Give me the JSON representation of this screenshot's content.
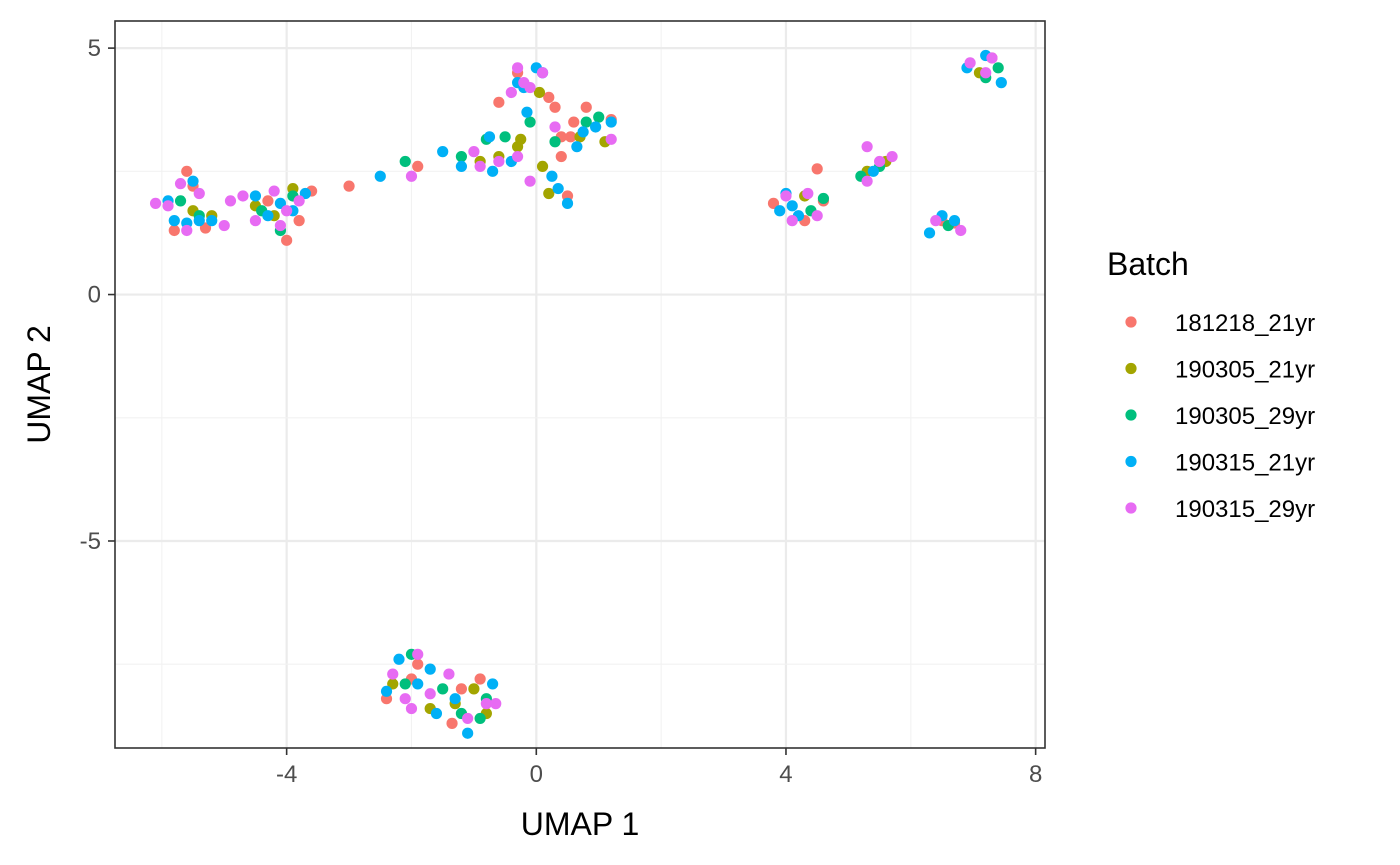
{
  "chart_data": {
    "type": "scatter",
    "title": "",
    "xlabel": "UMAP 1",
    "ylabel": "UMAP 2",
    "xlim": [
      -6.75,
      8.15
    ],
    "ylim": [
      -9.2,
      5.55
    ],
    "xticks": [
      -4,
      0,
      4,
      8
    ],
    "yticks": [
      5,
      0,
      -5
    ],
    "xtick_labels": [
      "-4",
      "0",
      "4",
      "8"
    ],
    "ytick_labels": [
      "5",
      "0",
      "-5"
    ],
    "grid": true,
    "legend": {
      "title": "Batch",
      "position": "right"
    },
    "series": [
      {
        "name": "181218_21yr",
        "color": "#F8766D",
        "points": [
          [
            -5.6,
            2.5
          ],
          [
            -5.8,
            1.3
          ],
          [
            -5.3,
            1.35
          ],
          [
            -5.5,
            2.2
          ],
          [
            -4.0,
            1.1
          ],
          [
            -3.6,
            2.1
          ],
          [
            -3.0,
            2.2
          ],
          [
            -1.9,
            2.6
          ],
          [
            -3.8,
            1.5
          ],
          [
            -4.3,
            1.9
          ],
          [
            -0.3,
            4.5
          ],
          [
            -0.6,
            3.9
          ],
          [
            0.2,
            4.0
          ],
          [
            0.3,
            3.8
          ],
          [
            0.8,
            3.8
          ],
          [
            0.6,
            3.5
          ],
          [
            1.2,
            3.55
          ],
          [
            0.4,
            3.2
          ],
          [
            0.55,
            3.2
          ],
          [
            0.4,
            2.8
          ],
          [
            0.5,
            2.0
          ],
          [
            3.8,
            1.85
          ],
          [
            4.3,
            1.5
          ],
          [
            4.5,
            2.55
          ],
          [
            4.6,
            1.9
          ],
          [
            6.5,
            1.5
          ],
          [
            6.7,
            1.45
          ],
          [
            -1.35,
            -8.7
          ],
          [
            -0.9,
            -7.8
          ],
          [
            -2.0,
            -7.8
          ],
          [
            -1.9,
            -7.5
          ],
          [
            -2.4,
            -8.2
          ],
          [
            -1.2,
            -8.0
          ],
          [
            7.3,
            4.8
          ]
        ]
      },
      {
        "name": "190305_21yr",
        "color": "#A3A500",
        "points": [
          [
            -5.5,
            1.7
          ],
          [
            -4.5,
            1.8
          ],
          [
            -3.9,
            2.15
          ],
          [
            -5.2,
            1.6
          ],
          [
            -0.6,
            2.8
          ],
          [
            -0.3,
            3.0
          ],
          [
            -0.25,
            3.15
          ],
          [
            0.05,
            4.1
          ],
          [
            0.1,
            2.6
          ],
          [
            0.2,
            2.05
          ],
          [
            1.1,
            3.1
          ],
          [
            0.7,
            3.2
          ],
          [
            -0.9,
            2.7
          ],
          [
            5.3,
            2.5
          ],
          [
            5.6,
            2.7
          ],
          [
            4.3,
            2.0
          ],
          [
            -1.7,
            -8.4
          ],
          [
            -1.0,
            -8.0
          ],
          [
            -2.3,
            -7.9
          ],
          [
            -1.3,
            -8.3
          ],
          [
            -0.8,
            -8.5
          ],
          [
            7.1,
            4.5
          ],
          [
            -4.2,
            1.6
          ]
        ]
      },
      {
        "name": "190305_29yr",
        "color": "#00BF7D",
        "points": [
          [
            -5.7,
            1.9
          ],
          [
            -5.4,
            1.6
          ],
          [
            -4.1,
            1.3
          ],
          [
            -4.4,
            1.7
          ],
          [
            -3.9,
            2.0
          ],
          [
            -2.1,
            2.7
          ],
          [
            -0.8,
            3.15
          ],
          [
            -0.5,
            3.2
          ],
          [
            -0.1,
            3.5
          ],
          [
            0.3,
            3.1
          ],
          [
            0.8,
            3.5
          ],
          [
            1.0,
            3.6
          ],
          [
            -1.2,
            2.8
          ],
          [
            4.6,
            1.95
          ],
          [
            5.2,
            2.4
          ],
          [
            5.5,
            2.6
          ],
          [
            4.4,
            1.7
          ],
          [
            6.6,
            1.4
          ],
          [
            -2.0,
            -7.3
          ],
          [
            -1.5,
            -8.0
          ],
          [
            -0.8,
            -8.2
          ],
          [
            -2.1,
            -7.9
          ],
          [
            -1.2,
            -8.5
          ],
          [
            -0.9,
            -8.6
          ],
          [
            7.4,
            4.6
          ],
          [
            7.2,
            4.4
          ]
        ]
      },
      {
        "name": "190315_21yr",
        "color": "#00B0F6",
        "points": [
          [
            -5.9,
            1.9
          ],
          [
            -5.6,
            1.45
          ],
          [
            -5.5,
            2.3
          ],
          [
            -5.4,
            1.5
          ],
          [
            -5.2,
            1.5
          ],
          [
            -4.5,
            2.0
          ],
          [
            -4.3,
            1.6
          ],
          [
            -4.1,
            1.85
          ],
          [
            -3.9,
            1.7
          ],
          [
            -3.7,
            2.05
          ],
          [
            -5.8,
            1.5
          ],
          [
            -2.5,
            2.4
          ],
          [
            -1.5,
            2.9
          ],
          [
            -1.2,
            2.6
          ],
          [
            -0.75,
            3.2
          ],
          [
            -0.7,
            2.5
          ],
          [
            -0.4,
            2.7
          ],
          [
            -0.3,
            4.3
          ],
          [
            -0.15,
            3.7
          ],
          [
            0.0,
            4.6
          ],
          [
            0.1,
            4.5
          ],
          [
            0.25,
            2.4
          ],
          [
            0.35,
            2.15
          ],
          [
            0.5,
            1.85
          ],
          [
            0.65,
            3.0
          ],
          [
            0.75,
            3.3
          ],
          [
            0.95,
            3.4
          ],
          [
            1.2,
            3.5
          ],
          [
            -0.2,
            4.2
          ],
          [
            4.0,
            2.05
          ],
          [
            4.1,
            1.8
          ],
          [
            4.2,
            1.6
          ],
          [
            3.9,
            1.7
          ],
          [
            5.4,
            2.5
          ],
          [
            6.3,
            1.25
          ],
          [
            6.5,
            1.6
          ],
          [
            6.7,
            1.5
          ],
          [
            -2.2,
            -7.4
          ],
          [
            -1.7,
            -7.6
          ],
          [
            -1.6,
            -8.5
          ],
          [
            -1.1,
            -8.9
          ],
          [
            -0.7,
            -7.9
          ],
          [
            -2.4,
            -8.05
          ],
          [
            -1.9,
            -7.9
          ],
          [
            -1.3,
            -8.2
          ],
          [
            6.9,
            4.6
          ],
          [
            7.2,
            4.85
          ],
          [
            7.45,
            4.3
          ]
        ]
      },
      {
        "name": "190315_29yr",
        "color": "#E76BF3",
        "points": [
          [
            -6.1,
            1.85
          ],
          [
            -5.9,
            1.8
          ],
          [
            -5.7,
            2.25
          ],
          [
            -5.6,
            1.3
          ],
          [
            -5.4,
            2.05
          ],
          [
            -5.0,
            1.4
          ],
          [
            -4.9,
            1.9
          ],
          [
            -4.7,
            2.0
          ],
          [
            -4.5,
            1.5
          ],
          [
            -4.2,
            2.1
          ],
          [
            -4.0,
            1.7
          ],
          [
            -4.1,
            1.4
          ],
          [
            -3.8,
            1.9
          ],
          [
            -2.0,
            2.4
          ],
          [
            -1.0,
            2.9
          ],
          [
            -0.9,
            2.6
          ],
          [
            -0.6,
            2.7
          ],
          [
            -0.3,
            4.6
          ],
          [
            -0.2,
            4.3
          ],
          [
            -0.4,
            4.1
          ],
          [
            -0.1,
            4.2
          ],
          [
            0.1,
            4.5
          ],
          [
            -0.3,
            2.8
          ],
          [
            -0.1,
            2.3
          ],
          [
            0.3,
            3.4
          ],
          [
            1.2,
            3.15
          ],
          [
            4.0,
            2.0
          ],
          [
            4.1,
            1.5
          ],
          [
            4.35,
            2.05
          ],
          [
            4.5,
            1.6
          ],
          [
            5.3,
            3.0
          ],
          [
            5.3,
            2.3
          ],
          [
            5.7,
            2.8
          ],
          [
            5.5,
            2.7
          ],
          [
            6.4,
            1.5
          ],
          [
            6.8,
            1.3
          ],
          [
            -2.3,
            -7.7
          ],
          [
            -2.1,
            -8.2
          ],
          [
            -1.9,
            -7.3
          ],
          [
            -1.7,
            -8.1
          ],
          [
            -1.1,
            -8.6
          ],
          [
            -0.8,
            -8.3
          ],
          [
            -0.65,
            -8.3
          ],
          [
            -2.0,
            -8.4
          ],
          [
            -1.4,
            -7.7
          ],
          [
            6.95,
            4.7
          ],
          [
            7.2,
            4.5
          ],
          [
            7.3,
            4.8
          ]
        ]
      }
    ]
  }
}
